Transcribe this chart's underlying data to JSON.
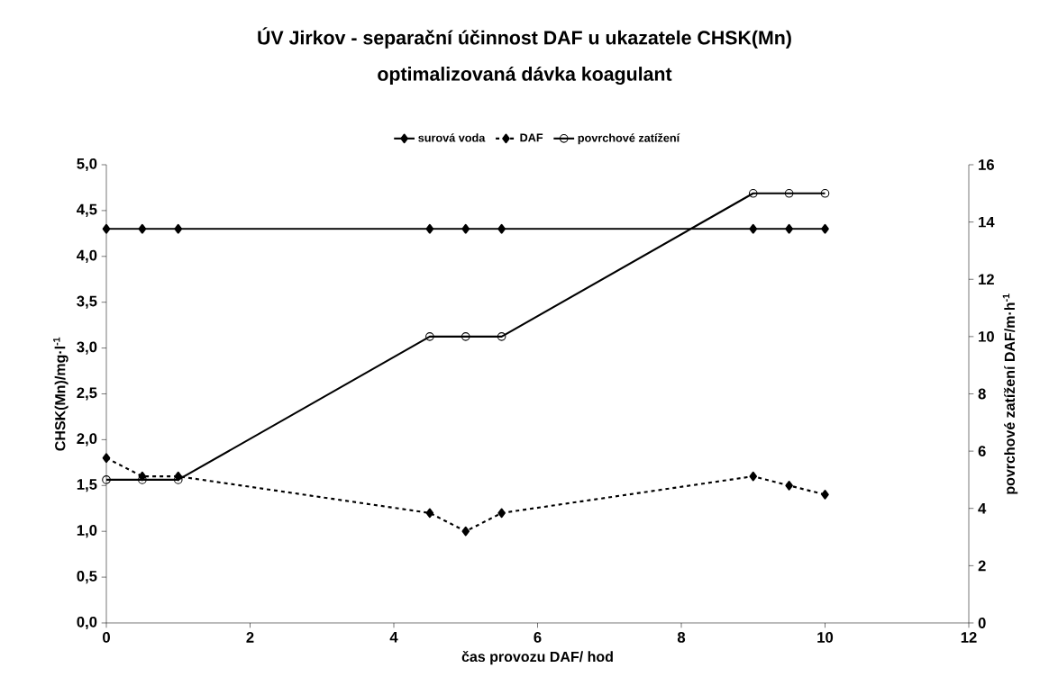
{
  "chart_data": {
    "type": "line",
    "title": "ÚV Jirkov - separační účinnost DAF u ukazatele CHSK(Mn)",
    "subtitle": "optimalizovaná dávka koagulant",
    "xlabel": "čas provozu DAF/ hod",
    "ylabel": "CHSK(Mn)/mg·l$^{-1}$",
    "y2label": "povrchové zatížení DAF/m·h$^{-1}$",
    "x": [
      0,
      0.5,
      1,
      4.5,
      5,
      5.5,
      9,
      9.5,
      10
    ],
    "series": [
      {
        "name": "surová voda",
        "color": "#000000",
        "marker": "diamond",
        "line_style": "solid",
        "values": [
          4.3,
          4.3,
          4.3,
          4.3,
          4.3,
          4.3,
          4.3,
          4.3,
          4.3
        ]
      },
      {
        "name": "DAF",
        "color": "#000000",
        "marker": "diamond",
        "line_style": "dashed",
        "values": [
          1.8,
          1.6,
          1.6,
          1.2,
          1.0,
          1.2,
          1.6,
          1.5,
          1.4
        ]
      },
      {
        "name": "povrchové zatížení",
        "color": "#000000",
        "marker": "circle",
        "line_style": "solid",
        "axis": "y2",
        "values": [
          5,
          5,
          5,
          10,
          10,
          10,
          15,
          15,
          15
        ]
      }
    ],
    "xlim": [
      0,
      12
    ],
    "xticks": [
      0,
      2,
      4,
      6,
      8,
      10,
      12
    ],
    "ylim": [
      0,
      5
    ],
    "yticks": [
      {
        "value": 0,
        "label": "0,0"
      },
      {
        "value": 0.5,
        "label": "0,5"
      },
      {
        "value": 1,
        "label": "1,0"
      },
      {
        "value": 1.5,
        "label": "1,5"
      },
      {
        "value": 2,
        "label": "2,0"
      },
      {
        "value": 2.5,
        "label": "2,5"
      },
      {
        "value": 3,
        "label": "3,0"
      },
      {
        "value": 3.5,
        "label": "3,5"
      },
      {
        "value": 4,
        "label": "4,0"
      },
      {
        "value": 4.5,
        "label": "4,5"
      },
      {
        "value": 5,
        "label": "5,0"
      }
    ],
    "y2lim": [
      0,
      16
    ],
    "y2ticks": [
      0,
      2,
      4,
      6,
      8,
      10,
      12,
      14,
      16
    ],
    "legend": "top",
    "grid": false
  }
}
